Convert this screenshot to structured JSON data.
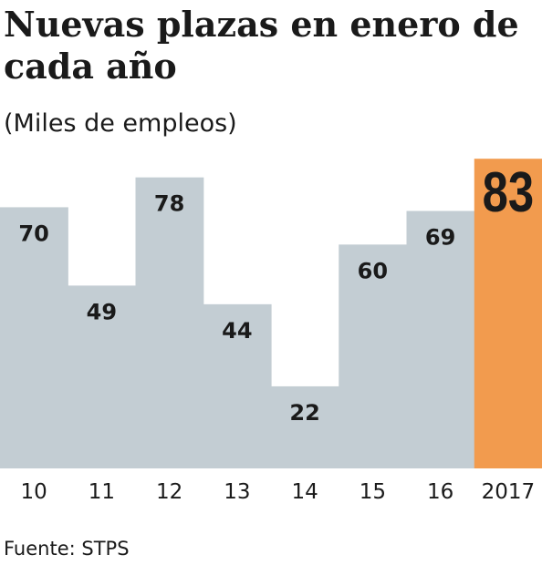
{
  "title": "Nuevas plazas en enero de cada año",
  "subtitle": "(Miles de empleos)",
  "source": "Fuente: STPS",
  "colors": {
    "bar": "#c3cdd3",
    "highlight": "#f29b4e",
    "text": "#1a1a1a"
  },
  "chart_data": {
    "type": "bar",
    "categories": [
      "10",
      "11",
      "12",
      "13",
      "14",
      "15",
      "16",
      "2017"
    ],
    "values": [
      70,
      49,
      78,
      44,
      22,
      60,
      69,
      83
    ],
    "highlight_index": 7,
    "title": "Nuevas plazas en enero de cada año",
    "subtitle": "(Miles de empleos)",
    "xlabel": "",
    "ylabel": "",
    "ylim": [
      0,
      85
    ],
    "grid": false,
    "legend": "none"
  }
}
